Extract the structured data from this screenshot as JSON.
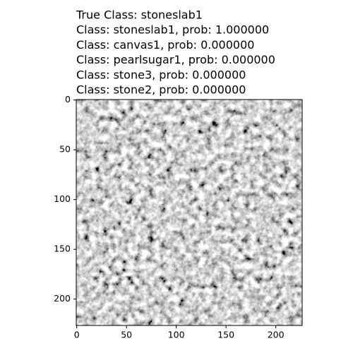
{
  "chart_data": {
    "type": "image",
    "title": [
      "True Class: stoneslab1",
      "Class: stoneslab1, prob: 1.000000",
      "Class: canvas1, prob: 0.000000",
      "Class: pearlsugar1, prob: 0.000000",
      "Class: stone3, prob: 0.000000",
      "Class: stone2, prob: 0.000000"
    ],
    "xlim": [
      -0.5,
      226.5
    ],
    "xticks": [
      0,
      50,
      100,
      150,
      200
    ],
    "ylim": [
      226.5,
      -0.5
    ],
    "yticks": [
      0,
      50,
      100,
      150,
      200
    ],
    "cmap": "gray"
  }
}
